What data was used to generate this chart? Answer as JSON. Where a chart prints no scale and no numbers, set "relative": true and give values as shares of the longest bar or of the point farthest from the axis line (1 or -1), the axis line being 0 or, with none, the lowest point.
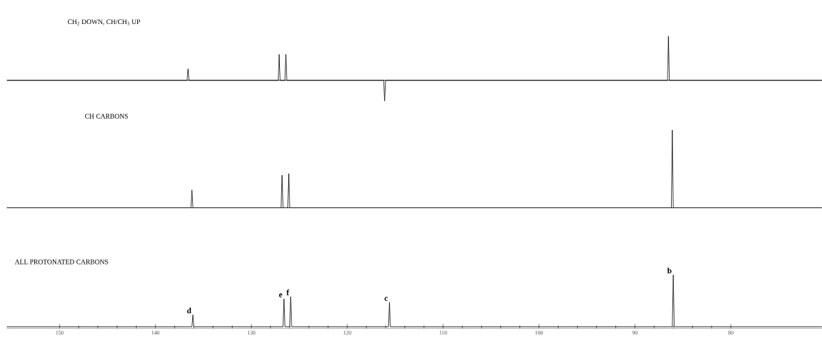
{
  "chart_data": [
    {
      "type": "line",
      "title": "CH$_{2}$  DOWN,  CH/CH$_{3}$ UP",
      "relative": true,
      "color": "#000000",
      "xlim": [
        155.5,
        70.5
      ],
      "tick_labels": false,
      "x": [
        155.5,
        136.7,
        136.6,
        136.5,
        127.2,
        127.1,
        127.0,
        126.5,
        126.4,
        126.3,
        116.2,
        116.1,
        116.0,
        86.6,
        86.5,
        86.4,
        70.5
      ],
      "values": [
        0,
        0,
        0.26,
        0,
        0,
        0.59,
        0,
        0,
        0.59,
        0,
        0,
        -0.47,
        0,
        0,
        1,
        0,
        0
      ]
    },
    {
      "type": "line",
      "title": "CH  CARBONS",
      "relative": true,
      "color": "#000000",
      "xlim": [
        155.5,
        70.5
      ],
      "tick_labels": false,
      "x": [
        155.5,
        136.3,
        136.2,
        136.1,
        126.9,
        126.8,
        126.7,
        126.2,
        126.1,
        126.0,
        86.2,
        86.1,
        86.0,
        70.5
      ],
      "values": [
        0,
        0,
        0.23,
        0,
        0,
        0.42,
        0,
        0,
        0.44,
        0,
        0,
        1,
        0,
        0
      ]
    },
    {
      "type": "line",
      "title": "ALL  PROTONATED  CARBONS",
      "relative": true,
      "color": "#000000",
      "xlim": [
        155.5,
        70.5
      ],
      "tick_labels": "x",
      "xticks": [
        150,
        140,
        130,
        120,
        110,
        100,
        90,
        80
      ],
      "x": [
        155.5,
        136.2,
        136.1,
        136.0,
        126.7,
        126.6,
        126.5,
        126.0,
        125.9,
        125.8,
        115.7,
        115.6,
        115.5,
        86.1,
        86.0,
        85.9,
        70.5
      ],
      "values": [
        0,
        0,
        0.23,
        0,
        0,
        0.54,
        0,
        0,
        0.58,
        0,
        0,
        0.47,
        0,
        0,
        1,
        0,
        0
      ],
      "annotations": [
        {
          "text": "d",
          "x": 136.1,
          "y": 0.23
        },
        {
          "text": "e",
          "x": 126.6,
          "y": 0.54
        },
        {
          "text": "f",
          "x": 125.9,
          "y": 0.58
        },
        {
          "text": "c",
          "x": 115.6,
          "y": 0.47
        },
        {
          "text": "b",
          "x": 86.0,
          "y": 1
        }
      ]
    }
  ]
}
